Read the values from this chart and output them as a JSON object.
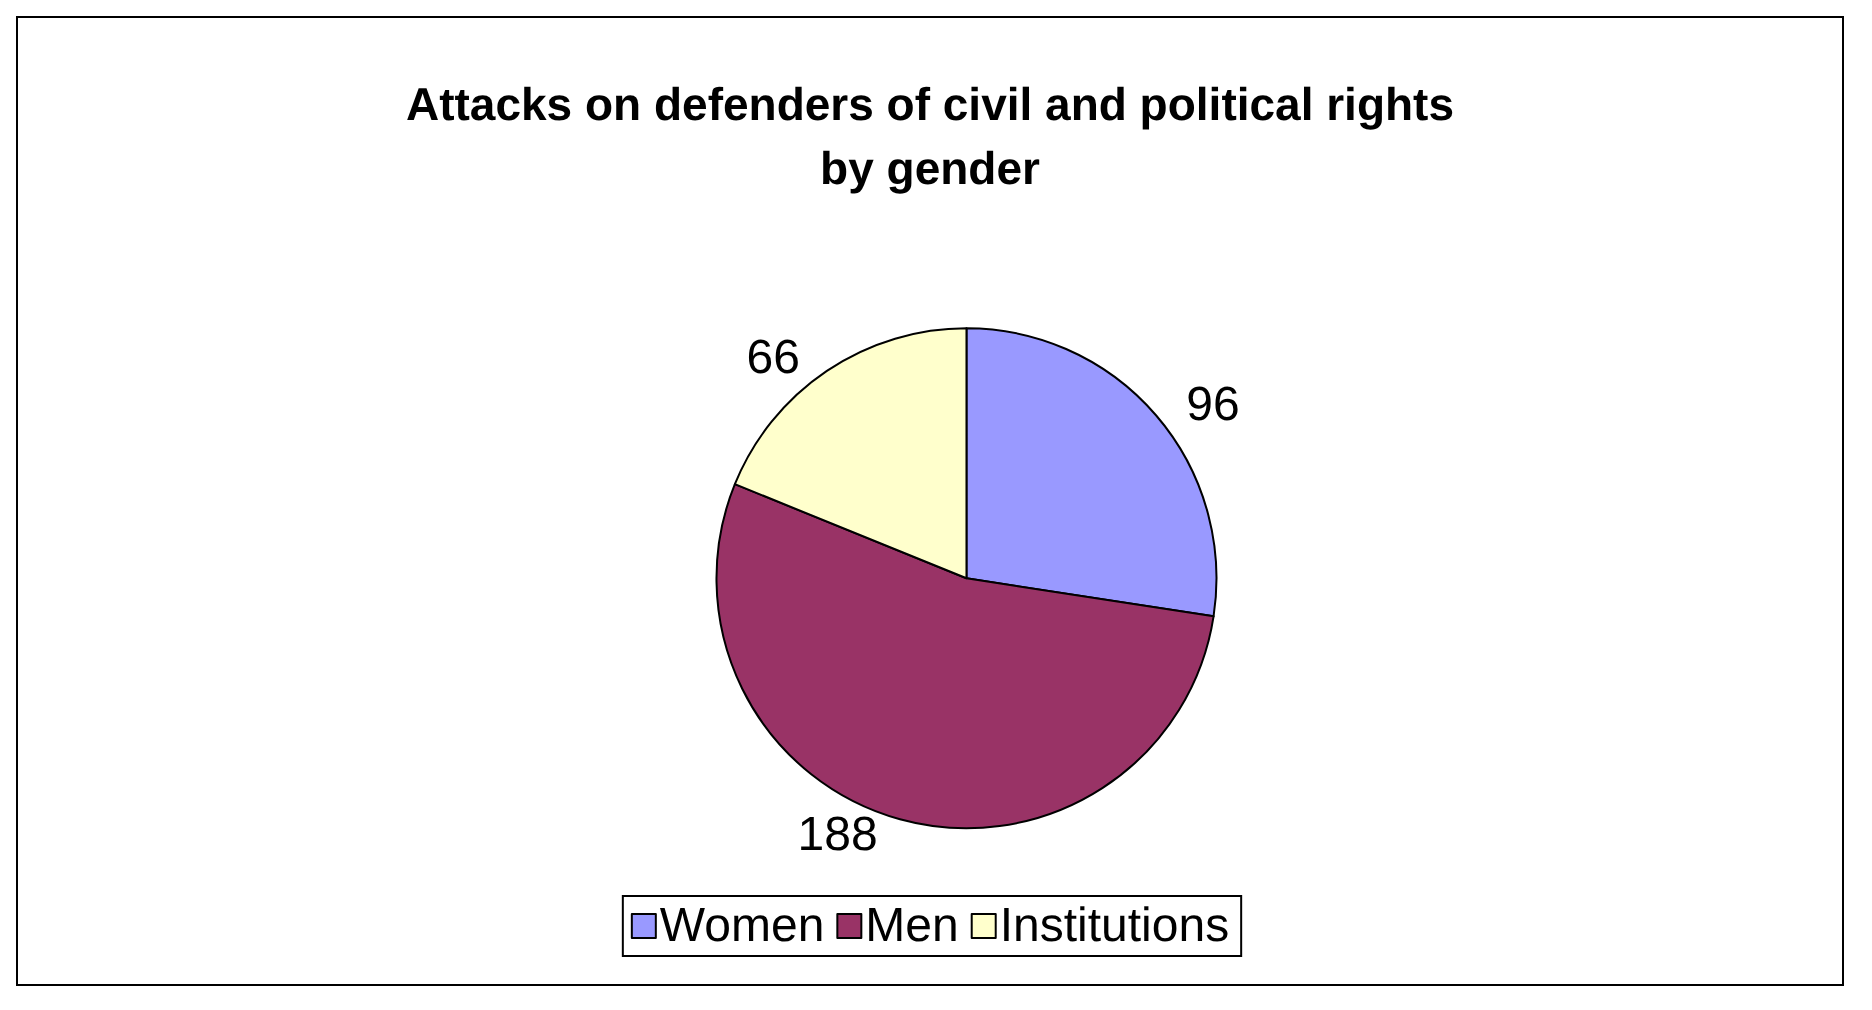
{
  "chart_data": {
    "type": "pie",
    "title": "Attacks on defenders of civil and political rights\nby gender",
    "categories": [
      "Women",
      "Men",
      "Institutions"
    ],
    "values": [
      96,
      188,
      66
    ],
    "colors": [
      "#9999ff",
      "#993366",
      "#ffffcc"
    ],
    "data_labels": true,
    "legend": "bottom"
  }
}
